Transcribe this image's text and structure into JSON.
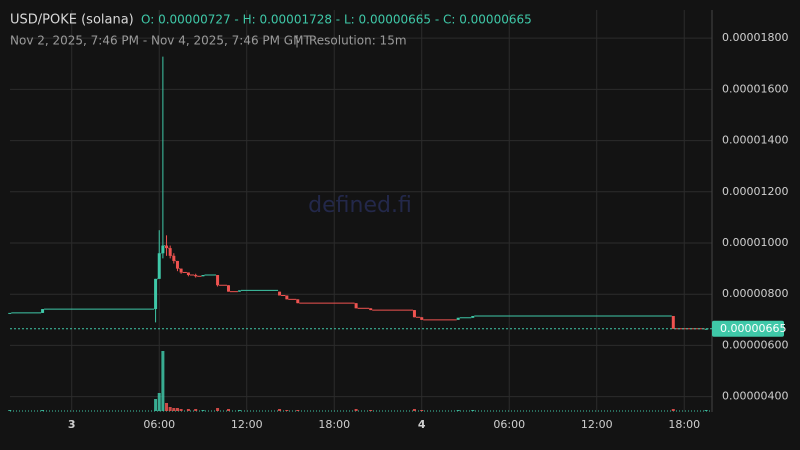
{
  "chart_data": {
    "type": "candlestick",
    "title": "USD/POKE (solana)",
    "ohlc_summary": "O: 0.00000727 - H: 0.00001728 - L: 0.00000665 - C: 0.00000665",
    "range": "Nov 2, 2025, 7:46 PM - Nov 4, 2025, 7:46 PM GMT",
    "resolution": "Resolution: 15m",
    "watermark": "defined.fi",
    "up_color": "#3fc8a8",
    "down_color": "#ef5350",
    "grid": true,
    "x": [
      "2025-11-02 19:45",
      "2025-11-02 22:00",
      "2025-11-03 05:45",
      "2025-11-03 06:00",
      "2025-11-03 06:15",
      "2025-11-03 06:30",
      "2025-11-03 06:45",
      "2025-11-03 07:00",
      "2025-11-03 07:15",
      "2025-11-03 07:30",
      "2025-11-03 08:00",
      "2025-11-03 08:30",
      "2025-11-03 09:00",
      "2025-11-03 10:00",
      "2025-11-03 10:45",
      "2025-11-03 11:30",
      "2025-11-03 14:15",
      "2025-11-03 14:45",
      "2025-11-03 15:30",
      "2025-11-03 19:30",
      "2025-11-03 20:30",
      "2025-11-03 23:30",
      "2025-11-04 00:00",
      "2025-11-04 02:30",
      "2025-11-04 03:30",
      "2025-11-04 17:15",
      "2025-11-04 19:30"
    ],
    "open": [
      7.27e-06,
      7.27e-06,
      7.42e-06,
      8.6e-06,
      9.6e-06,
      9.9e-06,
      9.8e-06,
      9.5e-06,
      9.3e-06,
      9e-06,
      8.85e-06,
      8.75e-06,
      8.7e-06,
      8.75e-06,
      8.35e-06,
      8.1e-06,
      8.1e-06,
      7.95e-06,
      7.8e-06,
      7.65e-06,
      7.45e-06,
      7.38e-06,
      7.1e-06,
      7e-06,
      7.08e-06,
      7.15e-06,
      6.65e-06
    ],
    "high": [
      7.27e-06,
      7.42e-06,
      8.6e-06,
      1.05e-05,
      1.728e-05,
      1.03e-05,
      9.9e-06,
      9.6e-06,
      9.3e-06,
      9e-06,
      8.85e-06,
      8.8e-06,
      8.75e-06,
      8.75e-06,
      8.35e-06,
      8.15e-06,
      8.1e-06,
      7.95e-06,
      7.8e-06,
      7.65e-06,
      7.45e-06,
      7.38e-06,
      7.1e-06,
      7.08e-06,
      7.15e-06,
      7.15e-06,
      6.65e-06
    ],
    "low": [
      7.27e-06,
      7.27e-06,
      6.9e-06,
      8.6e-06,
      9.4e-06,
      9.5e-06,
      9.4e-06,
      9.2e-06,
      8.9e-06,
      8.8e-06,
      8.7e-06,
      8.65e-06,
      8.7e-06,
      8.3e-06,
      8.1e-06,
      8.1e-06,
      7.95e-06,
      7.8e-06,
      7.65e-06,
      7.45e-06,
      7.38e-06,
      7.1e-06,
      7e-06,
      7e-06,
      7.08e-06,
      6.65e-06,
      6.65e-06
    ],
    "close": [
      7.27e-06,
      7.42e-06,
      8.6e-06,
      9.6e-06,
      9.9e-06,
      9.8e-06,
      9.5e-06,
      9.3e-06,
      9e-06,
      8.85e-06,
      8.75e-06,
      8.7e-06,
      8.75e-06,
      8.35e-06,
      8.1e-06,
      8.15e-06,
      7.95e-06,
      7.8e-06,
      7.65e-06,
      7.45e-06,
      7.38e-06,
      7.1e-06,
      7e-06,
      7.08e-06,
      7.15e-06,
      6.65e-06,
      6.65e-06
    ],
    "volume": [
      1,
      1,
      12,
      18,
      60,
      8,
      4,
      3,
      3,
      2,
      2,
      2,
      1,
      3,
      2,
      1,
      2,
      1,
      1,
      2,
      1,
      2,
      1,
      1,
      1,
      2,
      1
    ],
    "xlim": [
      "2025-11-02 19:46",
      "2025-11-04 19:46"
    ],
    "xticks": [
      {
        "value": "2025-11-03 00:00",
        "label": "3"
      },
      {
        "value": "2025-11-03 06:00",
        "label": "06:00"
      },
      {
        "value": "2025-11-03 12:00",
        "label": "12:00"
      },
      {
        "value": "2025-11-03 18:00",
        "label": "18:00"
      },
      {
        "value": "2025-11-04 00:00",
        "label": "4"
      },
      {
        "value": "2025-11-04 06:00",
        "label": "06:00"
      },
      {
        "value": "2025-11-04 12:00",
        "label": "12:00"
      },
      {
        "value": "2025-11-04 18:00",
        "label": "18:00"
      }
    ],
    "ylim": [
      3.4e-06,
      1.91e-05
    ],
    "yticks": [
      {
        "value": 4e-06,
        "label": "0.00000400"
      },
      {
        "value": 6e-06,
        "label": "0.00000600"
      },
      {
        "value": 8e-06,
        "label": "0.00000800"
      },
      {
        "value": 1e-05,
        "label": "0.00001000"
      },
      {
        "value": 1.2e-05,
        "label": "0.00001200"
      },
      {
        "value": 1.4e-05,
        "label": "0.00001400"
      },
      {
        "value": 1.6e-05,
        "label": "0.00001600"
      },
      {
        "value": 1.8e-05,
        "label": "0.00001800"
      }
    ],
    "last_price": {
      "value": 6.65e-06,
      "label": "0.00000665"
    }
  }
}
